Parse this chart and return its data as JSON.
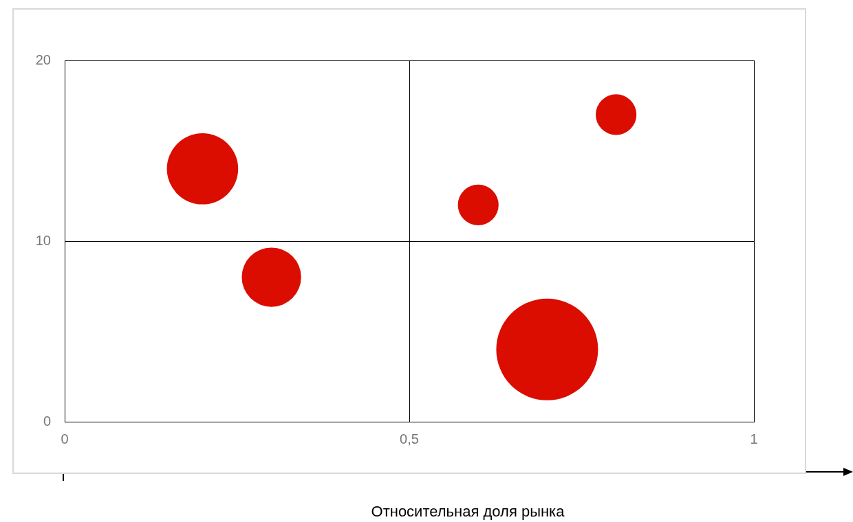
{
  "chart_data": {
    "type": "bubble",
    "xlabel": "Относительная доля рынка",
    "x": [
      0.2,
      0.3,
      0.6,
      0.8,
      0.7
    ],
    "values": [
      14,
      8,
      12,
      17,
      4
    ],
    "sizes": [
      0.49,
      0.34,
      0.16,
      0.16,
      1
    ],
    "color": "#db0d00",
    "xlim": [
      0,
      1
    ],
    "xticks": [
      0,
      {
        "value": 0.5,
        "label": "0,5"
      },
      1
    ],
    "ylim": [
      0,
      20
    ],
    "yticks": [
      0,
      10,
      20
    ],
    "grid": true,
    "legend": false
  }
}
